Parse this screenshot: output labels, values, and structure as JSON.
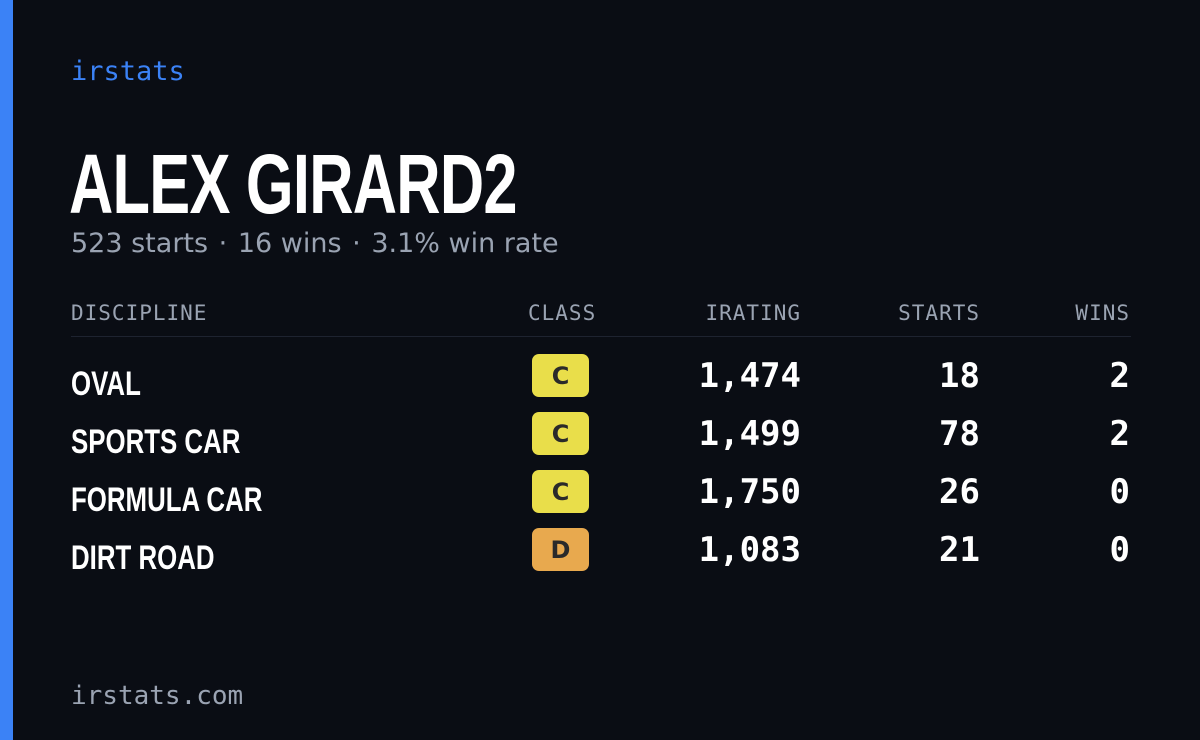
{
  "brand": "irstats",
  "driver": {
    "name": "ALEX GIRARD2",
    "starts_text": "523 starts",
    "wins_text": "16 wins",
    "win_rate_text": "3.1% win rate",
    "separator": "·"
  },
  "table": {
    "headers": {
      "discipline": "DISCIPLINE",
      "class": "CLASS",
      "irating": "IRATING",
      "starts": "STARTS",
      "wins": "WINS"
    },
    "rows": [
      {
        "discipline": "OVAL",
        "class": "C",
        "class_color": "#e9de4a",
        "irating": "1,474",
        "starts": "18",
        "wins": "2"
      },
      {
        "discipline": "SPORTS CAR",
        "class": "C",
        "class_color": "#e9de4a",
        "irating": "1,499",
        "starts": "78",
        "wins": "2"
      },
      {
        "discipline": "FORMULA CAR",
        "class": "C",
        "class_color": "#e9de4a",
        "irating": "1,750",
        "starts": "26",
        "wins": "0"
      },
      {
        "discipline": "DIRT ROAD",
        "class": "D",
        "class_color": "#e8a94e",
        "irating": "1,083",
        "starts": "21",
        "wins": "0"
      }
    ]
  },
  "footer": "irstats.com",
  "colors": {
    "background": "#0a0d14",
    "accent": "#3b82f6",
    "muted_text": "#9aa3b2",
    "primary_text": "#ffffff"
  }
}
